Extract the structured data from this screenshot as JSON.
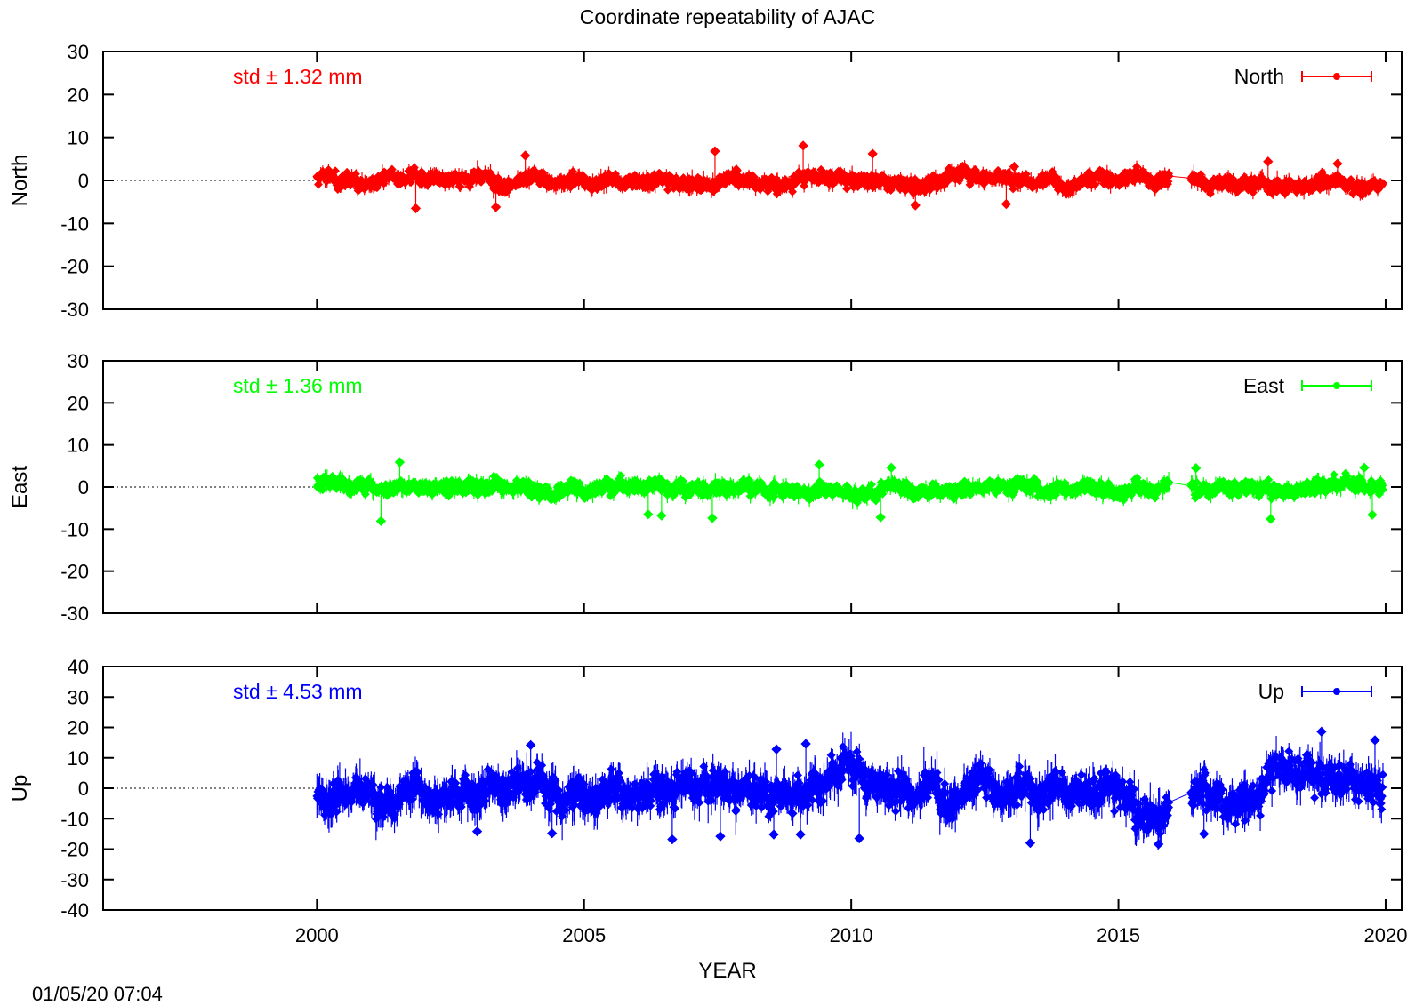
{
  "chart_data": {
    "type": "scatter",
    "title": "Coordinate repeatability of AJAC",
    "xlabel": "YEAR",
    "xlim": [
      1996,
      2020.3
    ],
    "xticks": [
      2000,
      2005,
      2010,
      2015,
      2020
    ],
    "x_start": 2000.0,
    "x_end": 2019.95,
    "gap": [
      2015.95,
      2016.35
    ],
    "timestamp": "01/05/20 07:04",
    "panels": [
      {
        "name": "North",
        "ylabel": "North",
        "legend": "North",
        "std_label": "std ± 1.32 mm",
        "color": "#ff0000",
        "ylim": [
          -30,
          30
        ],
        "yticks": [
          -30,
          -20,
          -10,
          0,
          10,
          20,
          30
        ],
        "spread": 1.32,
        "outliers": [
          [
            2001.85,
            -6.5
          ],
          [
            2003.35,
            -6.2
          ],
          [
            2003.9,
            5.8
          ],
          [
            2007.45,
            6.8
          ],
          [
            2009.1,
            8.1
          ],
          [
            2010.4,
            6.2
          ],
          [
            2011.2,
            -5.8
          ],
          [
            2012.9,
            -5.5
          ],
          [
            2013.05,
            3.2
          ],
          [
            2017.8,
            4.4
          ],
          [
            2019.1,
            3.9
          ]
        ]
      },
      {
        "name": "East",
        "ylabel": "East",
        "legend": "East",
        "std_label": "std ± 1.36 mm",
        "color": "#00ff00",
        "ylim": [
          -30,
          30
        ],
        "yticks": [
          -30,
          -20,
          -10,
          0,
          10,
          20,
          30
        ],
        "spread": 1.36,
        "outliers": [
          [
            2001.2,
            -8.1
          ],
          [
            2001.55,
            5.9
          ],
          [
            2006.2,
            -6.5
          ],
          [
            2006.45,
            -6.8
          ],
          [
            2007.4,
            -7.4
          ],
          [
            2009.4,
            5.3
          ],
          [
            2010.55,
            -7.2
          ],
          [
            2010.75,
            4.6
          ],
          [
            2017.85,
            -7.6
          ],
          [
            2019.75,
            -6.6
          ],
          [
            2019.6,
            4.6
          ],
          [
            2016.45,
            4.5
          ]
        ]
      },
      {
        "name": "Up",
        "ylabel": "Up",
        "legend": "Up",
        "std_label": "std ± 4.53 mm",
        "color": "#0000ff",
        "ylim": [
          -40,
          40
        ],
        "yticks": [
          -40,
          -30,
          -20,
          -10,
          0,
          10,
          20,
          30,
          40
        ],
        "spread": 4.53,
        "outliers": [
          [
            2003.0,
            -14.2
          ],
          [
            2004.4,
            -14.8
          ],
          [
            2004.0,
            14.2
          ],
          [
            2006.65,
            -16.8
          ],
          [
            2007.55,
            -15.8
          ],
          [
            2008.55,
            -15.2
          ],
          [
            2008.6,
            12.8
          ],
          [
            2009.05,
            -15.2
          ],
          [
            2009.15,
            14.6
          ],
          [
            2010.15,
            -16.5
          ],
          [
            2013.35,
            -18.0
          ],
          [
            2015.75,
            -18.4
          ],
          [
            2016.6,
            -15.0
          ],
          [
            2018.8,
            18.6
          ],
          [
            2019.8,
            15.8
          ]
        ]
      }
    ]
  }
}
